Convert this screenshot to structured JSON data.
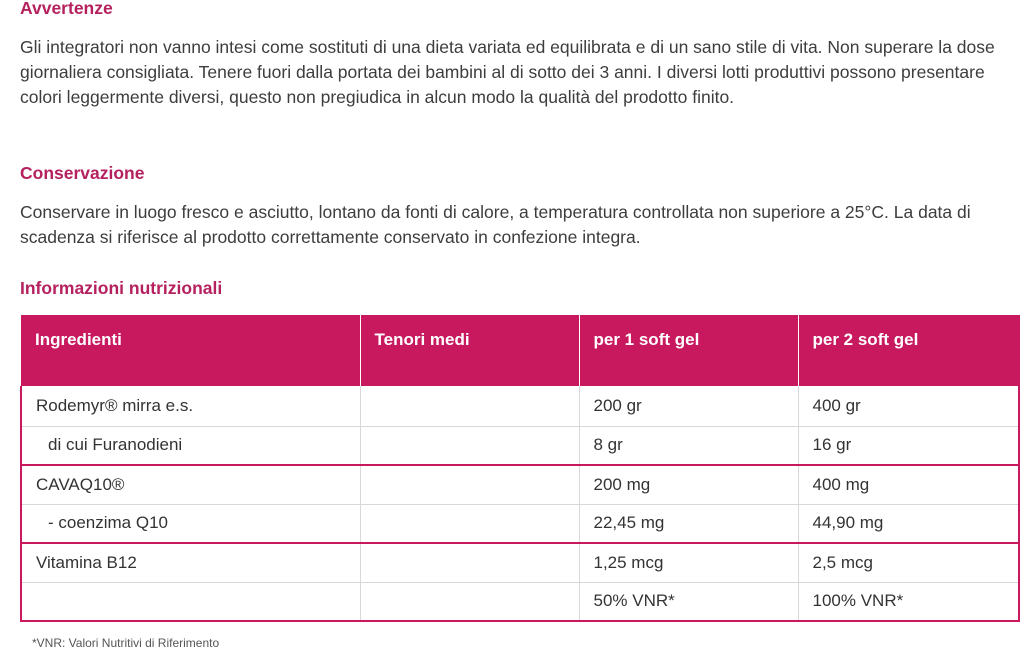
{
  "sections": {
    "warnings": {
      "title": "Avvertenze",
      "text": "Gli integratori non vanno intesi come sostituti di una dieta variata ed equilibrata e di un sano stile di vita. Non superare la dose giornaliera consigliata. Tenere fuori dalla portata dei bambini al di sotto dei 3 anni. I diversi lotti produttivi possono presentare colori leggermente diversi, questo non pregiudica in alcun modo la qualità del prodotto finito."
    },
    "storage": {
      "title": "Conservazione",
      "text": "Conservare in luogo fresco e asciutto, lontano da fonti di calore, a temperatura controllata non superiore a 25°C. La data di scadenza si riferisce al prodotto correttamente conservato in confezione integra."
    },
    "nutrition": {
      "title": "Informazioni nutrizionali"
    }
  },
  "table": {
    "headers": [
      "Ingredienti",
      "Tenori medi",
      "per 1 soft gel",
      "per 2 soft gel"
    ],
    "rows": [
      [
        "Rodemyr® mirra e.s.",
        "",
        "200 gr",
        "400 gr"
      ],
      [
        "di cui Furanodieni",
        "",
        "8 gr",
        "16 gr"
      ],
      [
        "CAVAQ10®",
        "",
        "200 mg",
        "400 mg"
      ],
      [
        "- coenzima Q10",
        "",
        "22,45 mg",
        "44,90 mg"
      ],
      [
        "Vitamina B12",
        "",
        "1,25 mcg",
        "2,5 mcg"
      ],
      [
        "",
        "",
        "50% VNR*",
        "100% VNR*"
      ]
    ]
  },
  "footnote": "*VNR: Valori Nutritivi di Riferimento",
  "colors": {
    "accent": "#c8195f",
    "heading": "#b5215f",
    "text": "#3d3d3d"
  }
}
